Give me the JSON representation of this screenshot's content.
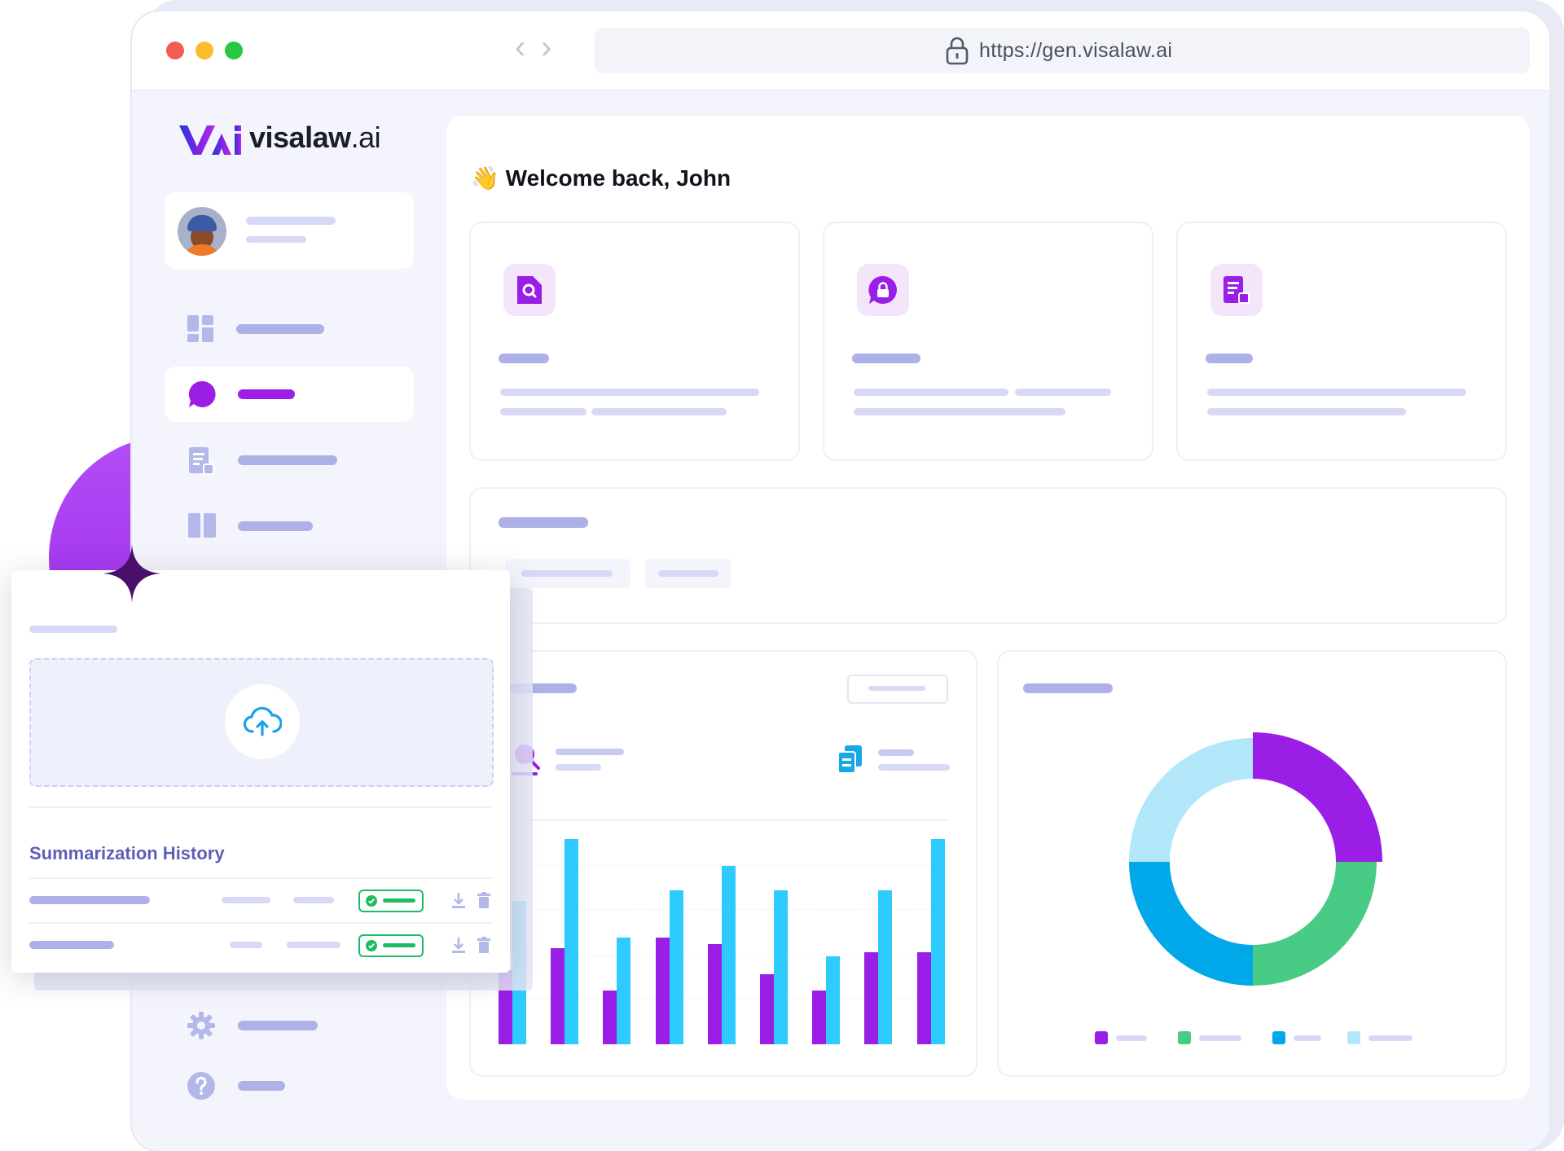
{
  "browser": {
    "url": "https://gen.visalaw.ai",
    "nav_back": "‹",
    "nav_forward": "›"
  },
  "brand": {
    "name": "visalaw",
    "suffix": ".ai"
  },
  "header": {
    "wave": "👋",
    "welcome": "Welcome back, John"
  },
  "upload_panel": {
    "history_title": "Summarization History"
  },
  "colors": {
    "purple": "#9a1ee6",
    "cyan": "#2ecbff",
    "green": "#47cb85",
    "blue": "#00a7e9",
    "light_blue": "#b2e7fa",
    "success": "#1ebc62"
  },
  "chart_data": [
    {
      "type": "bar",
      "categories": [
        "",
        "",
        "",
        "",
        "",
        "",
        "",
        "",
        ""
      ],
      "series": [
        {
          "values": [
            3.6,
            4.7,
            2.6,
            5.2,
            4.9,
            3.4,
            2.6,
            4.5,
            4.5
          ]
        },
        {
          "values": [
            7.0,
            10.0,
            5.2,
            7.5,
            8.7,
            7.5,
            4.3,
            7.5,
            10.0
          ]
        }
      ],
      "ylim": [
        0,
        10
      ],
      "grid": true
    },
    {
      "type": "pie",
      "donut": true,
      "slices": [
        {
          "value": 25,
          "color": "#9a1ee6"
        },
        {
          "value": 25,
          "color": "#47cb85"
        },
        {
          "value": 25,
          "color": "#00a7e9"
        },
        {
          "value": 25,
          "color": "#b2e7fa"
        }
      ],
      "legend": "bottom"
    }
  ]
}
